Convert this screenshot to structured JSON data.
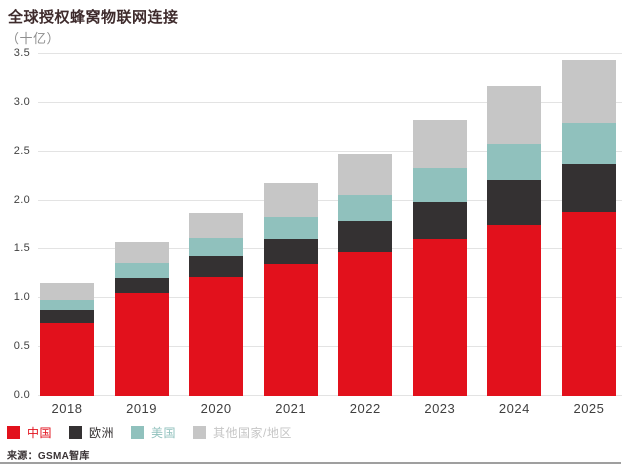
{
  "header": {
    "title": "全球授权蜂窝物联网连接",
    "subtitle": "（十亿）"
  },
  "source": {
    "label": "来源：GSMA智库"
  },
  "colors": {
    "title_text": "#3e2b2c",
    "subtitle_text": "#8e8e8e",
    "axis_text": "#414141",
    "gridline": "#e3e3e3",
    "divider": "#9f9f9f"
  },
  "chart_data": {
    "type": "bar",
    "stacked": true,
    "title": "全球授权蜂窝物联网连接",
    "subtitle_unit": "十亿",
    "categories": [
      "2018",
      "2019",
      "2020",
      "2021",
      "2022",
      "2023",
      "2024",
      "2025"
    ],
    "series": [
      {
        "name": "中国",
        "color": "#e2111c",
        "values": [
          0.75,
          1.05,
          1.22,
          1.35,
          1.47,
          1.61,
          1.75,
          1.88
        ]
      },
      {
        "name": "欧洲",
        "color": "#343132",
        "values": [
          0.13,
          0.16,
          0.21,
          0.26,
          0.32,
          0.38,
          0.46,
          0.49
        ]
      },
      {
        "name": "美国",
        "color": "#90c1bd",
        "values": [
          0.1,
          0.15,
          0.19,
          0.22,
          0.27,
          0.34,
          0.37,
          0.42
        ]
      },
      {
        "name": "其他国家/地区",
        "color": "#c6c6c6",
        "values": [
          0.18,
          0.22,
          0.25,
          0.35,
          0.42,
          0.49,
          0.59,
          0.65
        ]
      }
    ],
    "totals": [
      1.16,
      1.58,
      1.87,
      2.18,
      2.48,
      2.82,
      3.17,
      3.44
    ],
    "ylim": [
      0,
      3.5
    ],
    "ytick_step": 0.5,
    "yticks": [
      "0.0",
      "0.5",
      "1.0",
      "1.5",
      "2.0",
      "2.5",
      "3.0",
      "3.5"
    ],
    "grid": true,
    "legend_position": "bottom-left"
  }
}
